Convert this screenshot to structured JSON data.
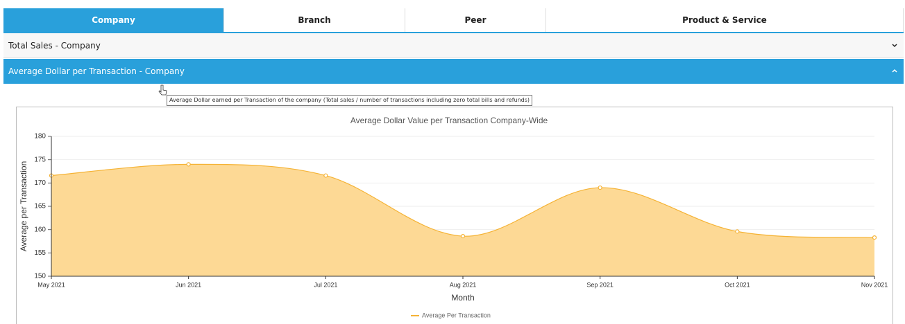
{
  "tabs": [
    {
      "label": "Company",
      "active": true
    },
    {
      "label": "Branch",
      "active": false
    },
    {
      "label": "Peer",
      "active": false
    },
    {
      "label": "Product & Service",
      "active": false
    }
  ],
  "accordion": [
    {
      "title": "Total Sales - Company",
      "expanded": false
    },
    {
      "title": "Average Dollar per Transaction - Company",
      "expanded": true
    }
  ],
  "tooltip": "Average Dollar earned per Transaction of the company (Total sales / number of transactions including zero total bills and refunds)",
  "chart_data": {
    "type": "area",
    "title": "Average Dollar Value per Transaction Company-Wide",
    "x_label": "Month",
    "y_label": "Average per Transaction",
    "categories": [
      "May 2021",
      "Jun 2021",
      "Jul 2021",
      "Aug 2021",
      "Sep 2021",
      "Oct 2021",
      "Nov 2021"
    ],
    "series": [
      {
        "name": "Average Per Transaction",
        "color": "#f5b335",
        "values": [
          171.6,
          174,
          171.6,
          158.6,
          169,
          159.6,
          158.3
        ]
      }
    ],
    "ylim": [
      150,
      180
    ],
    "yticks": [
      150,
      155,
      160,
      165,
      170,
      175,
      180
    ],
    "grid": true,
    "legend": "bottom"
  }
}
